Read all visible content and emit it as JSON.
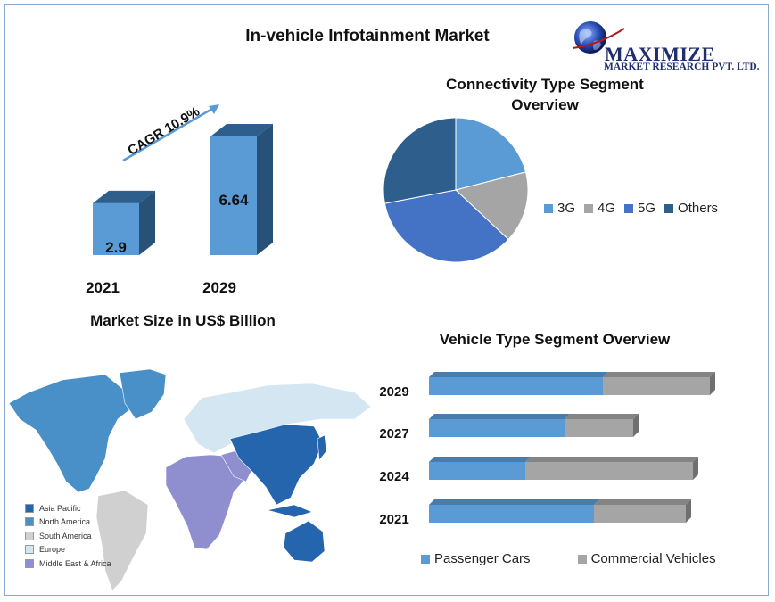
{
  "header": {
    "title": "In-vehicle Infotainment  Market"
  },
  "logo": {
    "name": "MAXIMIZE",
    "sub": "MARKET RESEARCH PVT. LTD."
  },
  "colors": {
    "blue_light": "#5b9bd5",
    "blue_mid": "#4472c4",
    "blue_dark": "#2e5f8c",
    "gray": "#a5a5a5",
    "map_asia": "#2565ae",
    "map_na": "#4a90c8",
    "map_sa": "#d0d0d0",
    "map_eu": "#d5e6f3",
    "map_mea": "#8f8fd0"
  },
  "chart_data": [
    {
      "type": "bar",
      "categories": [
        "2021",
        "2029"
      ],
      "values": [
        2.9,
        6.64
      ],
      "data_labels": [
        "2.9",
        "6.64"
      ],
      "annotation": "CAGR 10.9%",
      "title": "Market Size in US$ Billion"
    },
    {
      "type": "pie",
      "title": "Connectivity Type Segment Overview",
      "labels": [
        "3G",
        "4G",
        "5G",
        "Others"
      ],
      "values": [
        21,
        16,
        35,
        28
      ],
      "legend": "right"
    },
    {
      "type": "bar",
      "orientation": "horizontal",
      "stacked": true,
      "title": "Vehicle Type  Segment Overview",
      "categories": [
        "2029",
        "2027",
        "2024",
        "2021"
      ],
      "series": [
        {
          "name": "Passenger Cars",
          "values": [
            195,
            152,
            108,
            185
          ]
        },
        {
          "name": "Commercial Vehicles",
          "values": [
            120,
            77,
            188,
            103
          ]
        }
      ],
      "legend": "bottom"
    }
  ],
  "map_legend": {
    "items": [
      {
        "label": "Asia Pacific"
      },
      {
        "label": "North America"
      },
      {
        "label": "South America"
      },
      {
        "label": "Europe"
      },
      {
        "label": "Middle East & Africa"
      }
    ]
  }
}
